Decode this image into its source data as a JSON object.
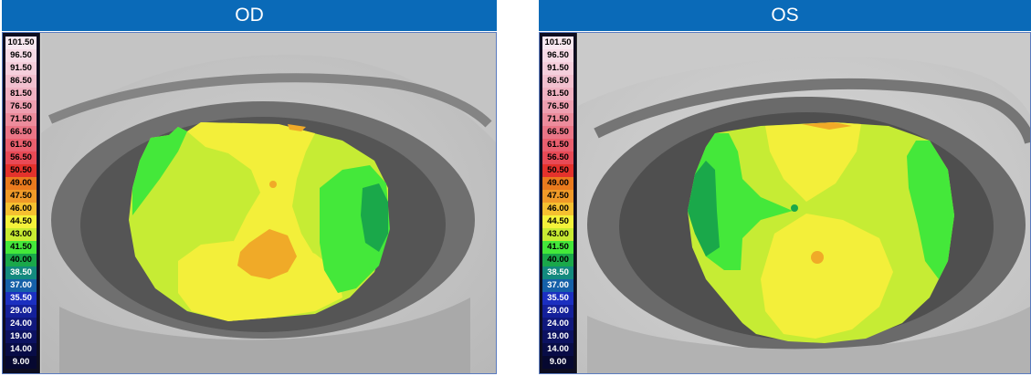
{
  "scale": [
    {
      "label": "101.50",
      "bg": "#f8e8f0",
      "fg": "#000000"
    },
    {
      "label": "96.50",
      "bg": "#f7dbe6",
      "fg": "#000000"
    },
    {
      "label": "91.50",
      "bg": "#f5cfdc",
      "fg": "#000000"
    },
    {
      "label": "86.50",
      "bg": "#f2c0cf",
      "fg": "#000000"
    },
    {
      "label": "81.50",
      "bg": "#f0b2c2",
      "fg": "#000000"
    },
    {
      "label": "76.50",
      "bg": "#ee9fb0",
      "fg": "#000000"
    },
    {
      "label": "71.50",
      "bg": "#ec8c9c",
      "fg": "#000000"
    },
    {
      "label": "66.50",
      "bg": "#ea7586",
      "fg": "#000000"
    },
    {
      "label": "61.50",
      "bg": "#e95f6e",
      "fg": "#000000"
    },
    {
      "label": "56.50",
      "bg": "#e84a56",
      "fg": "#000000"
    },
    {
      "label": "50.50",
      "bg": "#e4322c",
      "fg": "#000000"
    },
    {
      "label": "49.00",
      "bg": "#ea7a1e",
      "fg": "#000000"
    },
    {
      "label": "47.50",
      "bg": "#f09a28",
      "fg": "#000000"
    },
    {
      "label": "46.00",
      "bg": "#f5c030",
      "fg": "#000000"
    },
    {
      "label": "44.50",
      "bg": "#f4f23a",
      "fg": "#000000"
    },
    {
      "label": "43.00",
      "bg": "#c8ea32",
      "fg": "#000000"
    },
    {
      "label": "41.50",
      "bg": "#44e83a",
      "fg": "#000000"
    },
    {
      "label": "40.00",
      "bg": "#1aa84a",
      "fg": "#000000"
    },
    {
      "label": "38.50",
      "bg": "#138a7e",
      "fg": "#ffffff"
    },
    {
      "label": "37.00",
      "bg": "#1560a8",
      "fg": "#ffffff"
    },
    {
      "label": "35.50",
      "bg": "#1b2fc0",
      "fg": "#ffffff"
    },
    {
      "label": "29.00",
      "bg": "#14209a",
      "fg": "#ffffff"
    },
    {
      "label": "24.00",
      "bg": "#10187c",
      "fg": "#ffffff"
    },
    {
      "label": "19.00",
      "bg": "#0c1260",
      "fg": "#ffffff"
    },
    {
      "label": "14.00",
      "bg": "#080c46",
      "fg": "#ffffff"
    },
    {
      "label": "9.00",
      "bg": "#060830",
      "fg": "#ffffff"
    }
  ],
  "panels": {
    "od": {
      "title": "OD"
    },
    "os": {
      "title": "OS"
    }
  }
}
